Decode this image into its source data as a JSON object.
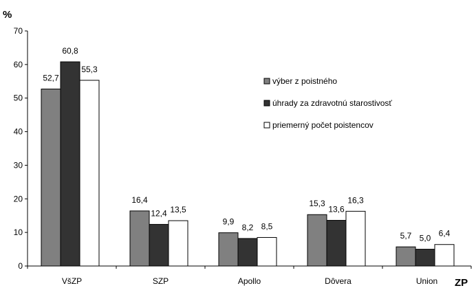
{
  "chart_data": {
    "type": "bar",
    "ylabel": "%",
    "xlabel": "ZP",
    "ylim": [
      0,
      70
    ],
    "yticks": [
      0,
      10,
      20,
      30,
      40,
      50,
      60,
      70
    ],
    "grid": false,
    "legend_position": "right",
    "categories": [
      "VšZP",
      "SZP",
      "Apollo",
      "Dôvera",
      "Union"
    ],
    "series": [
      {
        "name": "výber z poistného",
        "color": "#808080",
        "values": [
          52.7,
          16.4,
          9.9,
          15.3,
          5.7
        ],
        "labels": [
          "52,7",
          "16,4",
          "9,9",
          "15,3",
          "5,7"
        ]
      },
      {
        "name": "úhrady za zdravotnú starostivosť",
        "color": "#333333",
        "values": [
          60.8,
          12.4,
          8.2,
          13.6,
          5.0
        ],
        "labels": [
          "60,8",
          "12,4",
          "8,2",
          "13,6",
          "5,0"
        ]
      },
      {
        "name": "priemerný počet poistencov",
        "color": "#ffffff",
        "values": [
          55.3,
          13.5,
          8.5,
          16.3,
          6.4
        ],
        "labels": [
          "55,3",
          "13,5",
          "8,5",
          "16,3",
          "6,4"
        ]
      }
    ]
  }
}
